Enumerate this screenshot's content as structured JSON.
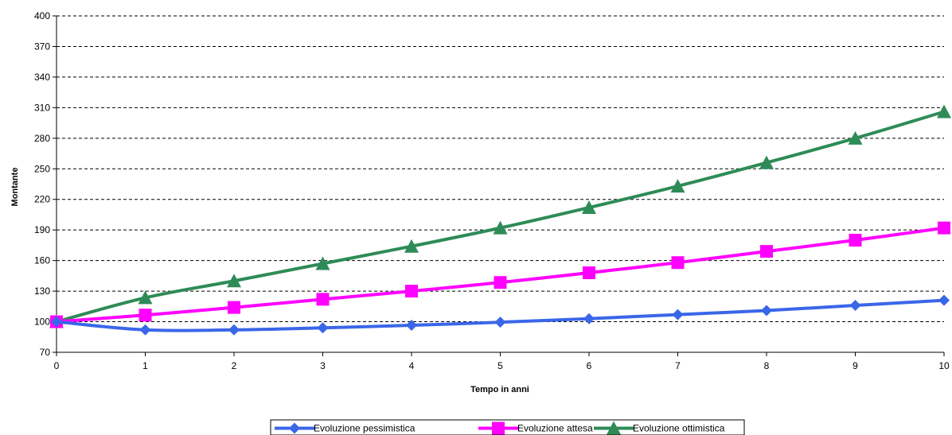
{
  "chart_data": {
    "type": "line",
    "title": "",
    "xlabel": "Tempo in anni",
    "ylabel": "Montante",
    "x": [
      0,
      1,
      2,
      3,
      4,
      5,
      6,
      7,
      8,
      9,
      10
    ],
    "xlim": [
      0,
      10
    ],
    "ylim": [
      70,
      400
    ],
    "yticks": [
      70,
      100,
      130,
      160,
      190,
      220,
      250,
      280,
      310,
      340,
      370,
      400
    ],
    "grid": "horizontal-dashed",
    "legend_position": "bottom",
    "series": [
      {
        "name": "Evoluzione pessimistica",
        "color": "#3a66e8",
        "marker": "diamond",
        "values": [
          100,
          92,
          92,
          94,
          96.5,
          99.5,
          103,
          107,
          111,
          116,
          121
        ]
      },
      {
        "name": "Evoluzione attesa",
        "color": "#ff00ff",
        "marker": "square",
        "values": [
          100,
          106.5,
          114,
          122,
          130,
          138.5,
          148,
          158,
          169,
          180,
          192
        ]
      },
      {
        "name": "Evoluzione ottimistica",
        "color": "#2e8b57",
        "marker": "triangle",
        "values": [
          100,
          123.5,
          140,
          157,
          174,
          192,
          212,
          233,
          256,
          280,
          306
        ]
      }
    ]
  }
}
